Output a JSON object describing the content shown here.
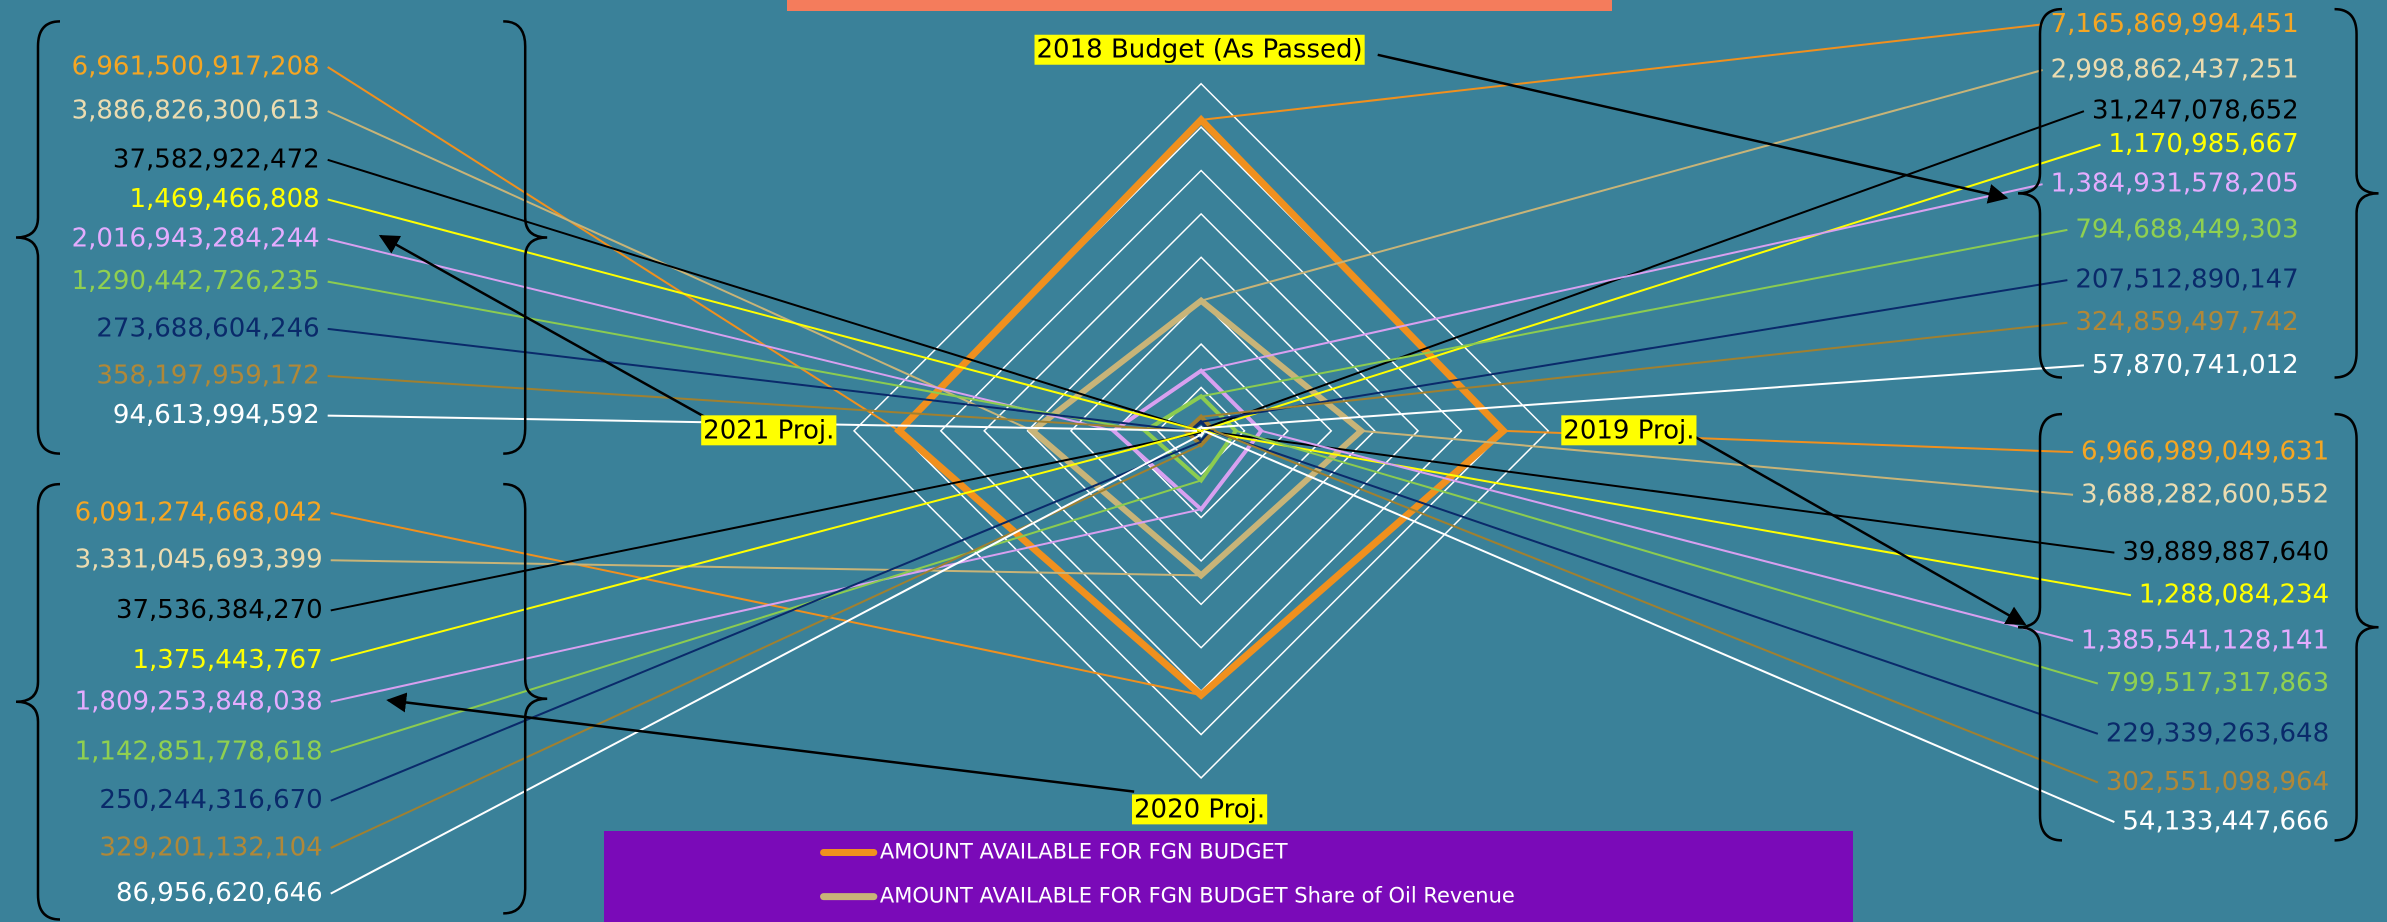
{
  "chart_data": {
    "type": "radar",
    "categories": [
      "2018 Budget (As Passed)",
      "2019 Proj.",
      "2020 Proj.",
      "2021 Proj."
    ],
    "rlim": [
      0,
      8000000000000
    ],
    "rticks": [
      0,
      1000000000000,
      2000000000000,
      3000000000000,
      4000000000000,
      5000000000000,
      6000000000000,
      7000000000000,
      8000000000000
    ],
    "grid": true,
    "series": [
      {
        "name": "AMOUNT AVAILABLE FOR FGN BUDGET",
        "color": "#f0901e",
        "values": [
          7165869994451,
          6966989049631,
          6091274668042,
          6961500917208
        ],
        "value_labels": [
          "7,165,869,994,451",
          "6,966,989,049,631",
          "6,091,274,668,042",
          "6,961,500,917,208"
        ]
      },
      {
        "name": "AMOUNT AVAILABLE FOR FGN BUDGET Share of Oil Revenue",
        "color": "#c8b478",
        "values": [
          2998862437251,
          3688282600552,
          3331045693399,
          3886826300613
        ],
        "value_labels": [
          "2,998,862,437,251",
          "3,688,282,600,552",
          "3,331,045,693,399",
          "3,886,826,300,613"
        ]
      },
      {
        "color": "#000000",
        "values": [
          31247078652,
          39889887640,
          37536384270,
          37582922472
        ],
        "value_labels": [
          "31,247,078,652",
          "39,889,887,640",
          "37,536,384,270",
          "37,582,922,472"
        ]
      },
      {
        "color": "#ffff00",
        "values": [
          1170985667,
          1288084234,
          1375443767,
          1469466808
        ],
        "value_labels": [
          "1,170,985,667",
          "1,288,084,234",
          "1,375,443,767",
          "1,469,466,808"
        ]
      },
      {
        "color": "#d8a0f0",
        "values": [
          1384931578205,
          1385541128141,
          1809253848038,
          2016943284244
        ],
        "value_labels": [
          "1,384,931,578,205",
          "1,385,541,128,141",
          "1,809,253,848,038",
          "2,016,943,284,244"
        ]
      },
      {
        "color": "#8ccc50",
        "values": [
          794688449303,
          799517317863,
          1142851778618,
          1290442726235
        ],
        "value_labels": [
          "794,688,449,303",
          "799,517,317,863",
          "1,142,851,778,618",
          "1,290,442,726,235"
        ]
      },
      {
        "color": "#0a2a6a",
        "values": [
          207512890147,
          229339263648,
          250244316670,
          273688604246
        ],
        "value_labels": [
          "207,512,890,147",
          "229,339,263,648",
          "250,244,316,670",
          "273,688,604,246"
        ]
      },
      {
        "color": "#a08030",
        "values": [
          324859497742,
          302551098964,
          329201132104,
          358197959172
        ],
        "value_labels": [
          "324,859,497,742",
          "302,551,098,964",
          "329,201,132,104",
          "358,197,959,172"
        ]
      },
      {
        "color": "#ffffff",
        "values": [
          57870741012,
          54133447666,
          86956620646,
          94613994592
        ],
        "value_labels": [
          "57,870,741,012",
          "54,133,447,666",
          "86,956,620,646",
          "94,613,994,592"
        ]
      }
    ]
  }
}
